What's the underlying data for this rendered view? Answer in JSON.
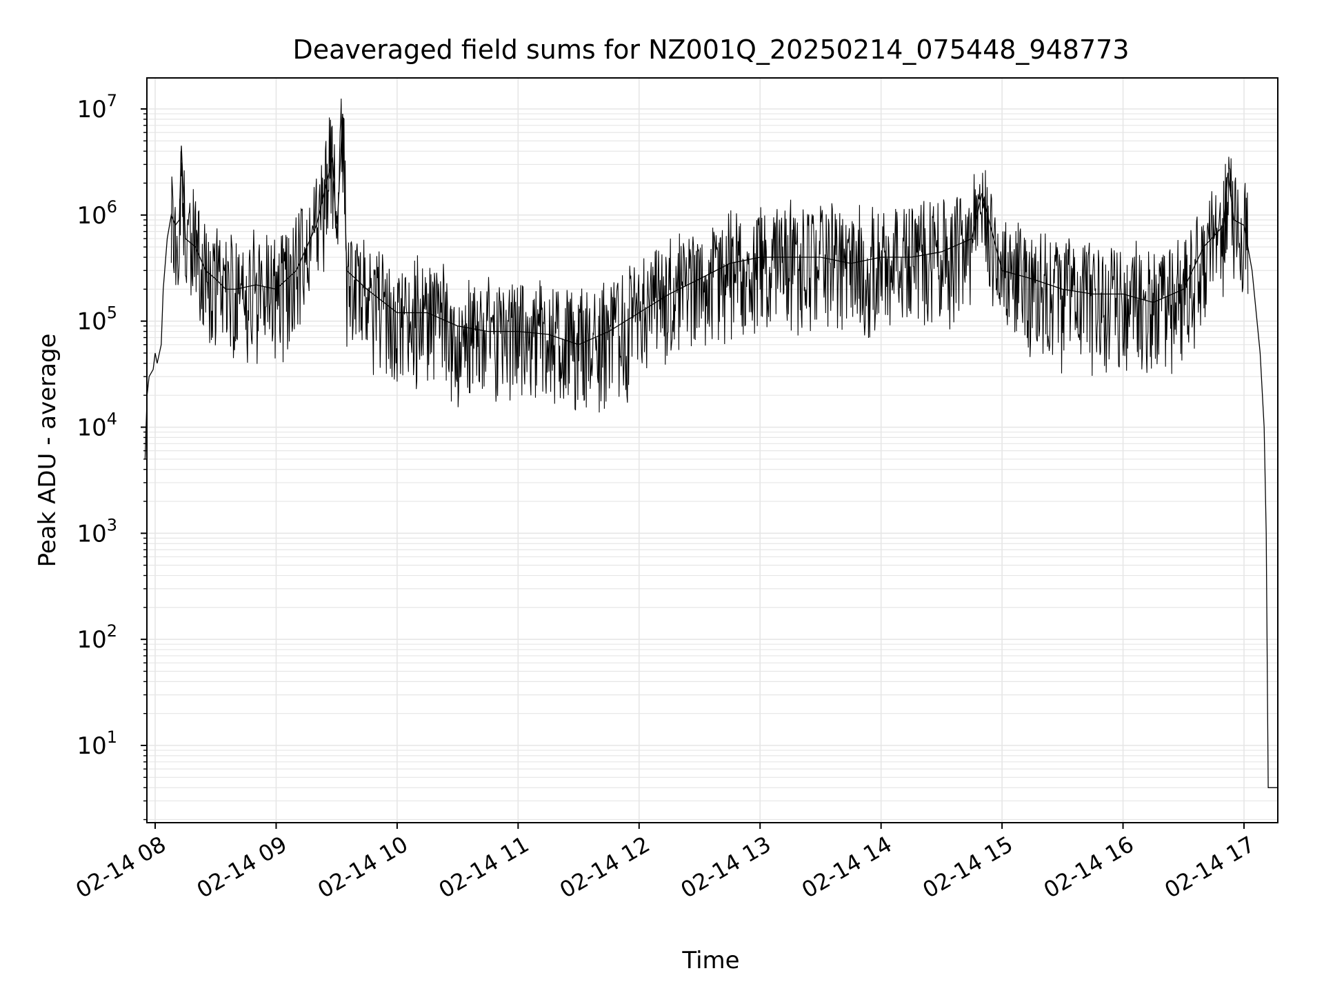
{
  "chart_data": {
    "type": "line",
    "title": "Deaveraged field sums for NZ001Q_20250214_075448_948773",
    "xlabel": "Time",
    "ylabel": "Peak ADU - average",
    "yscale": "log",
    "ylim": [
      1.8,
      20000000
    ],
    "xlim": [
      "2025-02-14 07:55",
      "2025-02-14 17:17"
    ],
    "grid": true,
    "line_color": "#000000",
    "grid_color": "#e6e6e6",
    "x_ticks": [
      "02-14 08",
      "02-14 09",
      "02-14 10",
      "02-14 11",
      "02-14 12",
      "02-14 13",
      "02-14 14",
      "02-14 15",
      "02-14 16",
      "02-14 17"
    ],
    "y_ticks": [
      {
        "base": "10",
        "exp": "1"
      },
      {
        "base": "10",
        "exp": "2"
      },
      {
        "base": "10",
        "exp": "3"
      },
      {
        "base": "10",
        "exp": "4"
      },
      {
        "base": "10",
        "exp": "5"
      },
      {
        "base": "10",
        "exp": "6"
      },
      {
        "base": "10",
        "exp": "7"
      }
    ],
    "series": [
      {
        "points": [
          [
            "2025-02-14 07:55",
            5000
          ],
          [
            "2025-02-14 07:56",
            20000
          ],
          [
            "2025-02-14 07:57",
            30000
          ],
          [
            "2025-02-14 07:59",
            35000
          ],
          [
            "2025-02-14 08:00",
            50000
          ],
          [
            "2025-02-14 08:01",
            40000
          ],
          [
            "2025-02-14 08:03",
            60000
          ],
          [
            "2025-02-14 08:04",
            200000
          ],
          [
            "2025-02-14 08:06",
            600000
          ],
          [
            "2025-02-14 08:08",
            1000000
          ],
          [
            "2025-02-14 08:10",
            800000
          ],
          [
            "2025-02-14 08:12",
            900000
          ],
          [
            "2025-02-14 08:13",
            4500000
          ],
          [
            "2025-02-14 08:15",
            600000
          ],
          [
            "2025-02-14 08:20",
            500000
          ],
          [
            "2025-02-14 08:25",
            300000
          ],
          [
            "2025-02-14 08:30",
            250000
          ],
          [
            "2025-02-14 08:35",
            200000
          ],
          [
            "2025-02-14 08:40",
            200000
          ],
          [
            "2025-02-14 08:50",
            220000
          ],
          [
            "2025-02-14 09:00",
            200000
          ],
          [
            "2025-02-14 09:10",
            300000
          ],
          [
            "2025-02-14 09:20",
            800000
          ],
          [
            "2025-02-14 09:25",
            2000000
          ],
          [
            "2025-02-14 09:28",
            3500000
          ],
          [
            "2025-02-14 09:30",
            600000
          ],
          [
            "2025-02-14 09:33",
            9000000
          ],
          [
            "2025-02-14 09:35",
            300000
          ],
          [
            "2025-02-14 09:45",
            200000
          ],
          [
            "2025-02-14 10:00",
            120000
          ],
          [
            "2025-02-14 10:15",
            120000
          ],
          [
            "2025-02-14 10:30",
            90000
          ],
          [
            "2025-02-14 10:45",
            80000
          ],
          [
            "2025-02-14 11:00",
            80000
          ],
          [
            "2025-02-14 11:15",
            75000
          ],
          [
            "2025-02-14 11:30",
            60000
          ],
          [
            "2025-02-14 11:45",
            80000
          ],
          [
            "2025-02-14 12:00",
            120000
          ],
          [
            "2025-02-14 12:15",
            180000
          ],
          [
            "2025-02-14 12:30",
            250000
          ],
          [
            "2025-02-14 12:45",
            350000
          ],
          [
            "2025-02-14 13:00",
            400000
          ],
          [
            "2025-02-14 13:15",
            400000
          ],
          [
            "2025-02-14 13:30",
            400000
          ],
          [
            "2025-02-14 13:45",
            350000
          ],
          [
            "2025-02-14 14:00",
            400000
          ],
          [
            "2025-02-14 14:15",
            400000
          ],
          [
            "2025-02-14 14:30",
            450000
          ],
          [
            "2025-02-14 14:45",
            600000
          ],
          [
            "2025-02-14 14:50",
            1600000
          ],
          [
            "2025-02-14 15:00",
            300000
          ],
          [
            "2025-02-14 15:15",
            250000
          ],
          [
            "2025-02-14 15:30",
            200000
          ],
          [
            "2025-02-14 15:45",
            180000
          ],
          [
            "2025-02-14 16:00",
            180000
          ],
          [
            "2025-02-14 16:15",
            150000
          ],
          [
            "2025-02-14 16:30",
            200000
          ],
          [
            "2025-02-14 16:40",
            500000
          ],
          [
            "2025-02-14 16:50",
            800000
          ],
          [
            "2025-02-14 16:52",
            2500000
          ],
          [
            "2025-02-14 16:55",
            900000
          ],
          [
            "2025-02-14 17:00",
            800000
          ],
          [
            "2025-02-14 17:04",
            300000
          ],
          [
            "2025-02-14 17:08",
            50000
          ],
          [
            "2025-02-14 17:10",
            10000
          ],
          [
            "2025-02-14 17:11",
            1000
          ],
          [
            "2025-02-14 17:12",
            4
          ],
          [
            "2025-02-14 17:17",
            4
          ]
        ]
      }
    ]
  }
}
